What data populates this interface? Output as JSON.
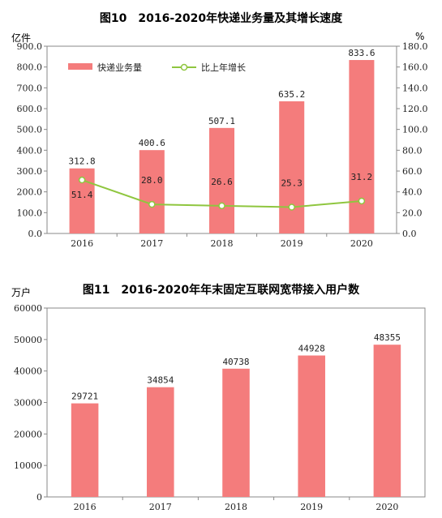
{
  "chart_data": [
    {
      "type": "bar",
      "title": "图10　2016-2020年快递业务量及其增长速度",
      "left_unit": "亿件",
      "right_unit": "%",
      "categories": [
        "2016",
        "2017",
        "2018",
        "2019",
        "2020"
      ],
      "series": [
        {
          "name": "快递业务量",
          "type": "bar",
          "axis": "left",
          "color": "#f47c7c",
          "values": [
            312.8,
            400.6,
            507.1,
            635.2,
            833.6
          ],
          "labels": [
            "312.8",
            "400.6",
            "507.1",
            "635.2",
            "833.6"
          ]
        },
        {
          "name": "比上年增长",
          "type": "line",
          "axis": "right",
          "color": "#8fc63f",
          "values": [
            51.4,
            28.0,
            26.6,
            25.3,
            31.2
          ],
          "labels": [
            "51.4",
            "28.0",
            "26.6",
            "25.3",
            "31.2"
          ]
        }
      ],
      "ylim_left": [
        0,
        900
      ],
      "ylim_right": [
        0,
        180
      ],
      "left_ticks": [
        "0.0",
        "100.0",
        "200.0",
        "300.0",
        "400.0",
        "500.0",
        "600.0",
        "700.0",
        "800.0",
        "900.0"
      ],
      "right_ticks": [
        "0.0",
        "20.0",
        "40.0",
        "60.0",
        "80.0",
        "100.0",
        "120.0",
        "140.0",
        "160.0",
        "180.0"
      ],
      "legend_position": "top-left",
      "grid": false
    },
    {
      "type": "bar",
      "title": "图11　2016-2020年年末固定互联网宽带接入用户数",
      "left_unit": "万户",
      "categories": [
        "2016",
        "2017",
        "2018",
        "2019",
        "2020"
      ],
      "series": [
        {
          "type": "bar",
          "axis": "left",
          "color": "#f47c7c",
          "values": [
            29721,
            34854,
            40738,
            44928,
            48355
          ],
          "labels": [
            "29721",
            "34854",
            "40738",
            "44928",
            "48355"
          ]
        }
      ],
      "ylim_left": [
        0,
        60000
      ],
      "left_ticks": [
        "0",
        "10000",
        "20000",
        "30000",
        "40000",
        "50000",
        "60000"
      ],
      "grid": false
    }
  ]
}
